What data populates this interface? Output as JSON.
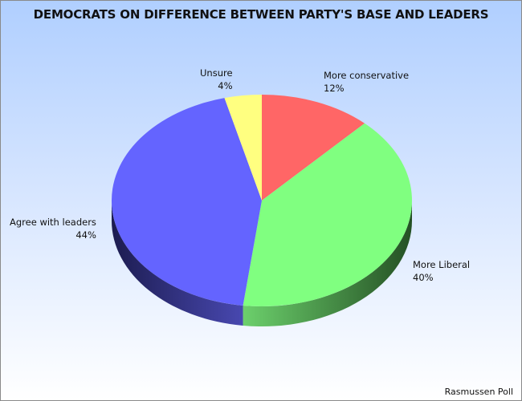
{
  "chart_data": {
    "type": "pie",
    "title": "DEMOCRATS ON DIFFERENCE BETWEEN PARTY'S BASE AND LEADERS",
    "style": "3d",
    "slices": [
      {
        "label": "More conservative",
        "value": 12,
        "display": "12%",
        "color": "#ff6666"
      },
      {
        "label": "More Liberal",
        "value": 40,
        "display": "40%",
        "color": "#80ff80"
      },
      {
        "label": "Agree with leaders",
        "value": 44,
        "display": "44%",
        "color": "#6464ff"
      },
      {
        "label": "Unsure",
        "value": 4,
        "display": "4%",
        "color": "#ffff80"
      }
    ],
    "source": "Rasmussen Poll",
    "legend": "none"
  }
}
